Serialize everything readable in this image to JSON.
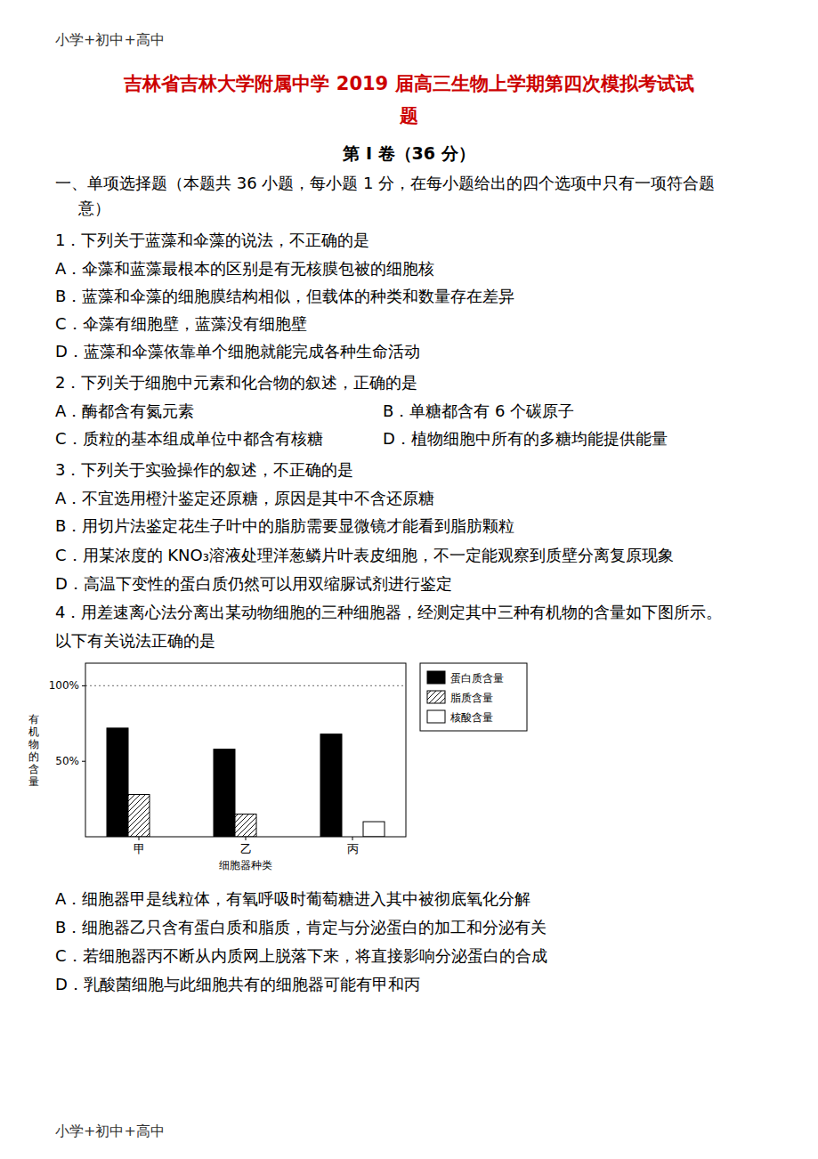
{
  "bg_color": "#ffffff",
  "header": "小学+初中+高中",
  "header_color": "#333333",
  "title1": "吉林省吉林大学附属中学 2019 届高三生物上学期第四次模拟考试试",
  "title2": "题",
  "title_color": "#cc0000",
  "section_heading": "第 I 卷（36 分）",
  "intro_line1": "一、单项选择题（本题共 36 小题，每小题 1 分，在每小题给出的四个选项中只有一项符合题",
  "intro_line2": "意）",
  "q1": "1．下列关于蓝藻和伞藻的说法，不正确的是",
  "q1a": "A．伞藻和蓝藻最根本的区别是有无核膜包被的细胞核",
  "q1b": "B．蓝藻和伞藻的细胞膜结构相似，但载体的种类和数量存在差异",
  "q1c": "C．伞藻有细胞壁，蓝藻没有细胞壁",
  "q1d": "D．蓝藻和伞藻依靠单个细胞就能完成各种生命活动",
  "q2": "2．下列关于细胞中元素和化合物的叙述，正确的是",
  "q2a": "A．酶都含有氮元素",
  "q2b": "B．单糖都含有 6 个碳原子",
  "q2c": "C．质粒的基本组成单位中都含有核糖",
  "q2d": "D．植物细胞中所有的多糖均能提供能量",
  "q3": "3．下列关于实验操作的叙述，不正确的是",
  "q3a": "A．不宜选用橙汁鉴定还原糖，原因是其中不含还原糖",
  "q3b": "B．用切片法鉴定花生子叶中的脂肪需要显微镜才能看到脂肪颗粒",
  "q3c": "C．用某浓度的 KNO₃溶液处理洋葱鳞片叶表皮细胞，不一定能观察到质壁分离复原现象",
  "q3d": "D．高温下变性的蛋白质仍然可以用双缩脲试剂进行鉴定",
  "q4_line1": "4．用差速离心法分离出某动物细胞的三种细胞器，经测定其中三种有机物的含量如下图所示。",
  "q4_line2": "以下有关说法正确的是",
  "q4a": "A．细胞器甲是线粒体，有氧呼吸时葡萄糖进入其中被彻底氧化分解",
  "q4b": "B．细胞器乙只含有蛋白质和脂质，肯定与分泌蛋白的加工和分泌有关",
  "q4c": "C．若细胞器丙不断从内质网上脱落下来，将直接影响分泌蛋白的合成",
  "q4d": "D．乳酸菌细胞与此细胞共有的细胞器可能有甲和丙",
  "footer": "小学+初中+高中",
  "chart_data": {
    "type": "bar",
    "categories": [
      "甲",
      "乙",
      "丙"
    ],
    "series": [
      {
        "name": "蛋白质含量",
        "color": "#000000",
        "values": [
          72,
          58,
          68
        ]
      },
      {
        "name": "脂质含量",
        "color": "#ffffff",
        "values": [
          28,
          15,
          0
        ]
      },
      {
        "name": "核酸含量",
        "color": "#ffffff",
        "values": [
          0,
          0,
          10
        ]
      }
    ],
    "x_label": "细胞器种类",
    "y_label": "有\n机\n物\n的\n含\n量",
    "ylim": [
      0,
      115
    ],
    "yticks": [
      {
        "value": 50,
        "label": "50%"
      },
      {
        "value": 100,
        "label": "100%"
      }
    ],
    "reference_lines": [
      100
    ],
    "legend": "upper right"
  }
}
